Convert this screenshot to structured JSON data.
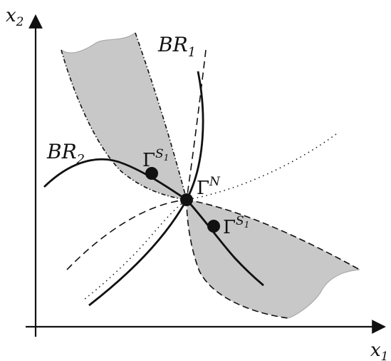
{
  "axes": {
    "x": {
      "base": "x",
      "sub": "1"
    },
    "y": {
      "base": "x",
      "sub": "2"
    }
  },
  "curves": {
    "br1": {
      "base": "BR",
      "sub": "1"
    },
    "br2": {
      "base": "BR",
      "sub": "2"
    }
  },
  "points": {
    "nash": {
      "base": "Γ",
      "sup": "N"
    },
    "s1_upper": {
      "base": "Γ",
      "sup": "S",
      "supsub": "1"
    },
    "s1_lower": {
      "base": "Γ",
      "sup": "S",
      "supsub": "1"
    }
  },
  "colors": {
    "region_fill": "#c8c8c8",
    "line": "#111111"
  }
}
